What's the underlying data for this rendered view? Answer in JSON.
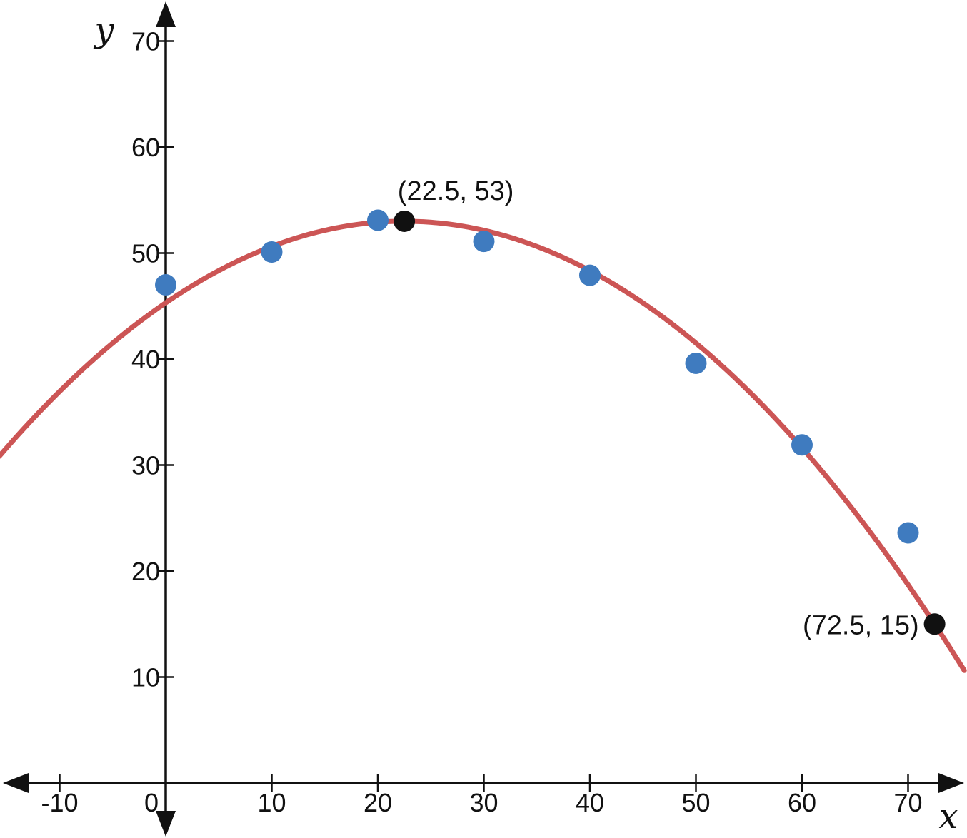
{
  "chart_data": {
    "type": "scatter",
    "xlabel": "x",
    "ylabel": "y",
    "xlim": [
      -15,
      75
    ],
    "ylim": [
      -5,
      75
    ],
    "x_ticks": [
      -10,
      0,
      10,
      20,
      30,
      40,
      50,
      60,
      70
    ],
    "y_ticks": [
      10,
      20,
      30,
      40,
      50,
      60,
      70
    ],
    "grid": false,
    "series": [
      {
        "type": "scatter",
        "color": "#3f7bbf",
        "points": [
          {
            "x": 0,
            "y": 47
          },
          {
            "x": 10,
            "y": 50.1
          },
          {
            "x": 20,
            "y": 53.1
          },
          {
            "x": 30,
            "y": 51.1
          },
          {
            "x": 40,
            "y": 47.9
          },
          {
            "x": 50,
            "y": 39.6
          },
          {
            "x": 60,
            "y": 31.9
          },
          {
            "x": 70,
            "y": 23.6
          }
        ]
      },
      {
        "type": "line",
        "color": "#cc5555",
        "curve": "quadratic",
        "vertex": {
          "x": 22.5,
          "y": 53
        },
        "through": {
          "x": 72.5,
          "y": 15
        }
      }
    ],
    "annotations": [
      {
        "x": 22.5,
        "y": 53,
        "label": "(22.5, 53)",
        "color": "#111111"
      },
      {
        "x": 72.5,
        "y": 15,
        "label": "(72.5, 15)",
        "color": "#111111"
      }
    ]
  }
}
